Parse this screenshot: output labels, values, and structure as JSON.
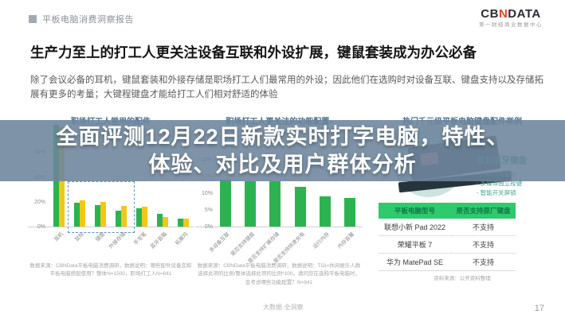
{
  "header": {
    "report_title": "平板电脑消费洞察报告",
    "logo": {
      "cb": "CB",
      "n": "N",
      "data": "DATA",
      "tagline": "第一财经商业数据中心"
    }
  },
  "slide": {
    "title": "生产力至上的打工人更关注设备互联和外设扩展，键鼠套装成为办公必备",
    "body": "除了会议必备的耳机，键鼠套装和外接存储是职场打工人们最常用的外设；因此他们在选购时对设备互联、键盘支持以及存储拓展有更多的考量；大键程键盘才能给打工人们相对舒适的体验"
  },
  "overlay": {
    "line1": "全面评测12月22日新款实时打字电脑，特性、",
    "line2": "体验、对比及用户群体分析",
    "bg_color": "#6c849c"
  },
  "chart_data": [
    {
      "type": "bar",
      "title": "职场打工人常用的配件",
      "categories": [
        "耳机",
        "鼠标",
        "键盘",
        "外接存储",
        "手写笔",
        "蓝牙音箱",
        "拓展坞"
      ],
      "series": [
        {
          "name": "series-green",
          "color": "#2cb34f",
          "values": [
            82,
            19,
            17,
            13,
            15,
            10,
            6.5
          ]
        },
        {
          "name": "series-yellow",
          "color": "#f2c718",
          "values": [
            80,
            21,
            20,
            16.5,
            16,
            8,
            6.5
          ]
        }
      ],
      "ylim": [
        0,
        80
      ],
      "yticks": [
        0,
        20,
        40,
        60
      ],
      "highlight": "dashed box over 鼠标 / 键盘 / 外接存储",
      "source": "数据来源：CBNData平板电脑消费调研，数据说明：哪些配件设备您和平板电脑搭配使用？整体N=1500，职场打工人N=641"
    },
    {
      "type": "bar",
      "title": "职场打工人更关注的功能配置-",
      "categories": [
        "多设备互联",
        "是否支持键盘",
        "是否支持扩展存储",
        "是否支持快速充电",
        "运行内存",
        "内存容量"
      ],
      "series": [
        {
          "name": "series-green",
          "color": "#2cb34f",
          "values": [
            14,
            13.5,
            13.5,
            12,
            9,
            8.5
          ]
        }
      ],
      "ylim": [
        0,
        20
      ],
      "yticks": [
        0,
        5,
        10,
        15,
        20
      ],
      "source": "数据来源：CBNData平板电脑消费调研，数据说明：TGI=休闲娱乐人群选择此项的比例/整体选择此项的比例*100，请问您在选购平板电脑时，会考虑哪些功能配置？N=641"
    },
    {
      "type": "table",
      "title": "热门千元级平板电脑键盘配件举例",
      "columns": [
        "平板电脑型号",
        "是否支持原厂键盘"
      ],
      "rows": [
        [
          "联想小新 Pad 2022",
          "不支持"
        ],
        [
          "荣耀平板 7",
          "不支持"
        ],
        [
          "华为 MatePad SE",
          "不支持"
        ]
      ],
      "source": "资料来源：公开资料整理"
    }
  ],
  "right_panel": {
    "product_name": "智能蓝牙键盘",
    "features": [
      "1.4mm大键程",
      "多媒体独立按键",
      "智能开关屏锁"
    ]
  },
  "footer": {
    "watermark": "大数据·全洞察",
    "page_number": "17"
  }
}
